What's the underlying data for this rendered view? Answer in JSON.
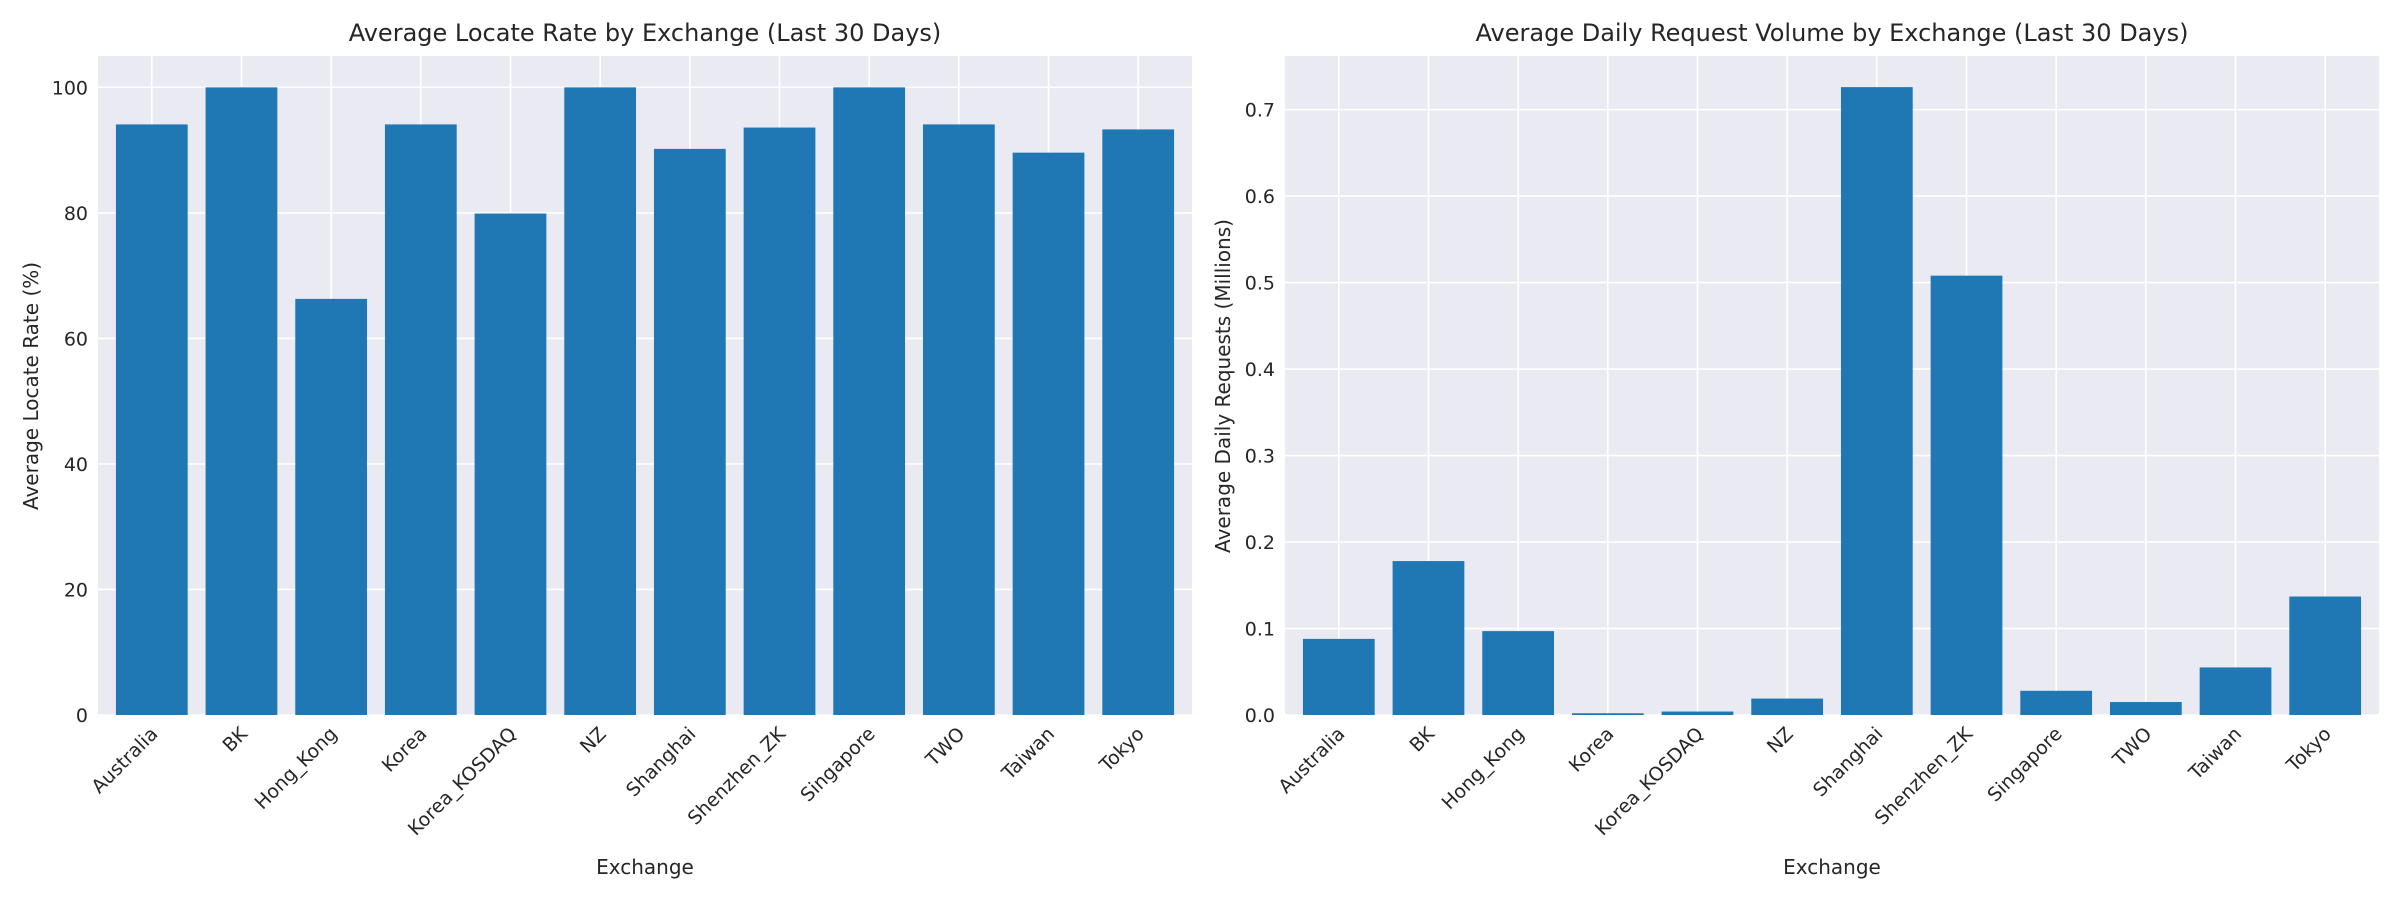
{
  "chart_data": [
    {
      "type": "bar",
      "title": "Average Locate Rate by Exchange (Last 30 Days)",
      "xlabel": "Exchange",
      "ylabel": "Average Locate Rate (%)",
      "categories": [
        "Australia",
        "BK",
        "Hong_Kong",
        "Korea",
        "Korea_KOSDAQ",
        "NZ",
        "Shanghai",
        "Shenzhen_ZK",
        "Singapore",
        "TWO",
        "Taiwan",
        "Tokyo"
      ],
      "values": [
        94.1,
        100.0,
        66.3,
        94.1,
        79.9,
        100.0,
        90.2,
        93.6,
        100.0,
        94.1,
        89.6,
        93.3
      ],
      "ylim": [
        0,
        105
      ],
      "yticks": [
        0,
        20,
        40,
        60,
        80,
        100
      ],
      "ytick_labels": [
        "0",
        "20",
        "40",
        "60",
        "80",
        "100"
      ],
      "grid": true,
      "bar_color": "#1f77b4"
    },
    {
      "type": "bar",
      "title": "Average Daily Request Volume by Exchange (Last 30 Days)",
      "xlabel": "Exchange",
      "ylabel": "Average Daily Requests (Millions)",
      "categories": [
        "Australia",
        "BK",
        "Hong_Kong",
        "Korea",
        "Korea_KOSDAQ",
        "NZ",
        "Shanghai",
        "Shenzhen_ZK",
        "Singapore",
        "TWO",
        "Taiwan",
        "Tokyo"
      ],
      "values": [
        0.088,
        0.178,
        0.097,
        0.002,
        0.004,
        0.019,
        0.726,
        0.508,
        0.028,
        0.015,
        0.055,
        0.137
      ],
      "ylim": [
        0,
        0.762
      ],
      "yticks": [
        0.0,
        0.1,
        0.2,
        0.3,
        0.4,
        0.5,
        0.6,
        0.7
      ],
      "ytick_labels": [
        "0.0",
        "0.1",
        "0.2",
        "0.3",
        "0.4",
        "0.5",
        "0.6",
        "0.7"
      ],
      "grid": true,
      "bar_color": "#1f77b4"
    }
  ]
}
